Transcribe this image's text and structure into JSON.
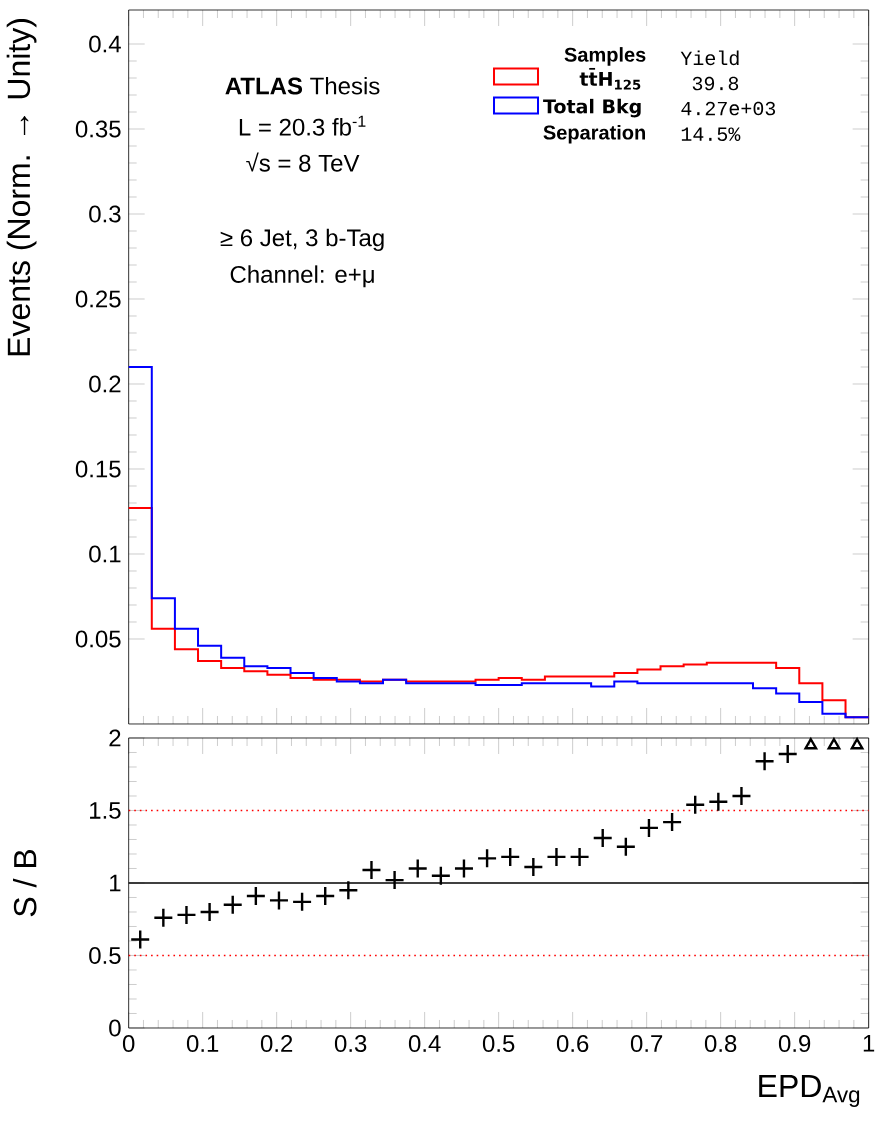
{
  "chart_data": [
    {
      "type": "histogram",
      "ylabel": "Events (Norm. → Unity)",
      "legend_title": "Samples",
      "legend": "top right",
      "tick_labels": "y",
      "annotations": [
        "**ATLAS** Thesis",
        "L = 20.3 fb$^{-1}$",
        "√s = 8 TeV",
        "≥ 6 Jet, 3 b-Tag",
        "Channel: e+μ",
        "Yield",
        "39.8",
        "4.27e+03",
        "Separation",
        "14.5%"
      ],
      "bins": [
        0,
        0.03125,
        0.0625,
        0.09375,
        0.125,
        0.15625,
        0.1875,
        0.21875,
        0.25,
        0.28125,
        0.3125,
        0.34375,
        0.375,
        0.40625,
        0.4375,
        0.46875,
        0.5,
        0.53125,
        0.5625,
        0.59375,
        0.625,
        0.65625,
        0.6875,
        0.71875,
        0.75,
        0.78125,
        0.8125,
        0.84375,
        0.875,
        0.90625,
        0.9375,
        0.96875,
        1
      ],
      "series": [
        {
          "name": "tt̄H$_{125}$",
          "color": "#ff0000",
          "values": [
            0.127,
            0.056,
            0.044,
            0.037,
            0.033,
            0.031,
            0.029,
            0.027,
            0.026,
            0.026,
            0.025,
            0.026,
            0.025,
            0.025,
            0.025,
            0.026,
            0.027,
            0.026,
            0.028,
            0.028,
            0.028,
            0.03,
            0.032,
            0.034,
            0.035,
            0.036,
            0.036,
            0.036,
            0.033,
            0.024,
            0.014,
            0.004
          ]
        },
        {
          "name": "Total Bkg",
          "color": "#0000ff",
          "values": [
            0.21,
            0.074,
            0.056,
            0.046,
            0.039,
            0.034,
            0.033,
            0.03,
            0.027,
            0.025,
            0.024,
            0.026,
            0.024,
            0.024,
            0.024,
            0.023,
            0.023,
            0.024,
            0.024,
            0.024,
            0.022,
            0.025,
            0.024,
            0.024,
            0.024,
            0.024,
            0.024,
            0.021,
            0.018,
            0.013,
            0.006,
            0.004
          ]
        }
      ],
      "xlim": [
        0,
        1
      ],
      "xticks": [
        0,
        0.1,
        0.2,
        0.3,
        0.4,
        0.5,
        0.6,
        0.7,
        0.8,
        0.9,
        1
      ],
      "ylim": [
        0,
        0.42
      ],
      "yticks": [
        0.05,
        0.1,
        0.15,
        0.2,
        0.25,
        0.3,
        0.35,
        0.4
      ]
    },
    {
      "type": "scatter",
      "xlabel": "EPD$_{Avg}$",
      "ylabel": "S / B",
      "marker": "cross",
      "x": [
        0.015625,
        0.046875,
        0.078125,
        0.109375,
        0.140625,
        0.171875,
        0.203125,
        0.234375,
        0.265625,
        0.296875,
        0.328125,
        0.359375,
        0.390625,
        0.421875,
        0.453125,
        0.484375,
        0.515625,
        0.546875,
        0.578125,
        0.609375,
        0.640625,
        0.671875,
        0.703125,
        0.734375,
        0.765625,
        0.796875,
        0.828125,
        0.859375,
        0.890625,
        0.921875,
        0.953125,
        0.984375
      ],
      "series": [
        {
          "color": "#000000",
          "values": [
            0.61,
            0.76,
            0.78,
            0.8,
            0.85,
            0.91,
            0.88,
            0.87,
            0.91,
            0.95,
            1.09,
            1.02,
            1.1,
            1.05,
            1.1,
            1.17,
            1.18,
            1.11,
            1.18,
            1.18,
            1.31,
            1.25,
            1.38,
            1.42,
            1.54,
            1.56,
            1.6,
            1.84,
            1.89,
            null,
            null,
            null
          ]
        },
        {
          "color": "#000000",
          "marker": "triangle",
          "values": [
            null,
            null,
            null,
            null,
            null,
            null,
            null,
            null,
            null,
            null,
            null,
            null,
            null,
            null,
            null,
            null,
            null,
            null,
            null,
            null,
            null,
            null,
            null,
            null,
            null,
            null,
            null,
            null,
            null,
            1.95,
            1.95,
            1.95
          ]
        }
      ],
      "ref_lines": [
        {
          "axis": "y",
          "value": 1,
          "color": "#000000",
          "line_style": "solid"
        },
        {
          "axis": "y",
          "value": 1.5,
          "color": "#ff0000",
          "line_style": "dotted"
        },
        {
          "axis": "y",
          "value": 0.5,
          "color": "#ff0000",
          "line_style": "dotted"
        }
      ],
      "xlim": [
        0,
        1
      ],
      "xticks": [
        0,
        0.1,
        0.2,
        0.3,
        0.4,
        0.5,
        0.6,
        0.7,
        0.8,
        0.9,
        1
      ],
      "ylim": [
        0,
        2
      ],
      "yticks": [
        0,
        0.5,
        1,
        1.5,
        2
      ]
    }
  ]
}
